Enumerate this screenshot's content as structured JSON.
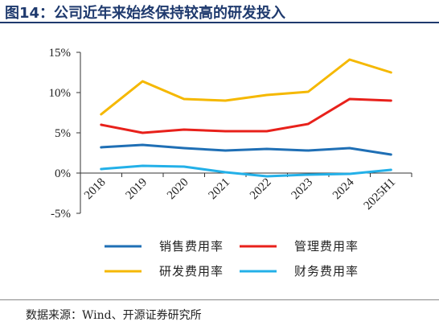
{
  "header": {
    "title": "图14：公司近年来始终保持较高的研发投入"
  },
  "footer": {
    "source": "数据来源：Wind、开源证券研究所"
  },
  "chart_data": {
    "type": "line",
    "title": "",
    "xlabel": "",
    "ylabel": "",
    "categories": [
      "2018",
      "2019",
      "2020",
      "2021",
      "2022",
      "2023",
      "2024",
      "2025H1"
    ],
    "y_ticks": [
      "15%",
      "10%",
      "5%",
      "0%",
      "-5%"
    ],
    "y_tick_values": [
      15,
      10,
      5,
      0,
      -5
    ],
    "ylim": [
      -5,
      15
    ],
    "grid": false,
    "legend_position": "bottom",
    "series": [
      {
        "name": "销售费用率",
        "color": "#1f6fb5",
        "values": [
          3.2,
          3.5,
          3.1,
          2.8,
          3.0,
          2.8,
          3.1,
          2.3
        ]
      },
      {
        "name": "管理费用率",
        "color": "#e8211b",
        "values": [
          6.0,
          5.0,
          5.4,
          5.2,
          5.2,
          6.1,
          9.2,
          9.0
        ]
      },
      {
        "name": "研发费用率",
        "color": "#f5b800",
        "values": [
          7.3,
          11.4,
          9.2,
          9.0,
          9.7,
          10.1,
          14.1,
          12.5
        ]
      },
      {
        "name": "财务费用率",
        "color": "#23b0e8",
        "values": [
          0.5,
          0.9,
          0.8,
          0.1,
          -0.4,
          -0.2,
          -0.1,
          0.4
        ]
      }
    ]
  }
}
